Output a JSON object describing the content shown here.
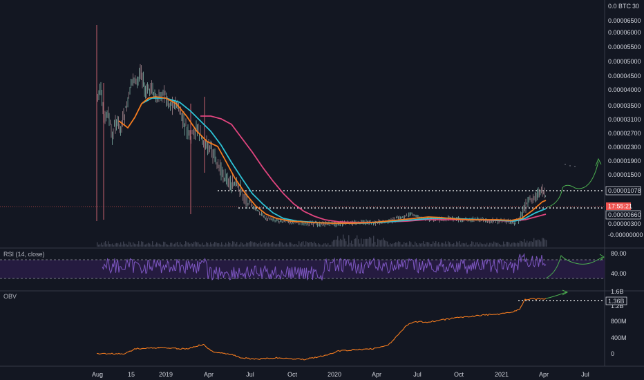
{
  "colors": {
    "background": "#131722",
    "candles": "#6f7b86",
    "ema_fast": "#f57c1f",
    "ema_mid": "#2dc3d6",
    "ema_slow": "#e2457f",
    "rsi_line": "#7e57c2",
    "rsi_band": "#2a1d49",
    "obv_line": "#f57c1f",
    "annotation_arrow": "#4caf50",
    "price_badge": "#f05350",
    "pane_border": "#363a45"
  },
  "price_axis": {
    "currency_label": "0.0 BTC",
    "header_suffix": "30",
    "ticks": [
      "0.00006500",
      "0.00006000",
      "0.00005500",
      "0.00005000",
      "0.00004500",
      "0.00004000",
      "0.00003500",
      "0.00003100",
      "0.00002700",
      "0.00002300",
      "0.00001900",
      "0.00001500",
      "0.00000300",
      "-0.00000000"
    ],
    "level_high": "0.00001078",
    "countdown": "17:55:21",
    "level_low": "0.00000660"
  },
  "rsi_pane": {
    "title": "RSI (14, close)",
    "ticks": [
      "80.00",
      "40.00"
    ]
  },
  "obv_pane": {
    "title": "OBV",
    "ticks": [
      "1.6B",
      "1.2B",
      "800M",
      "400M",
      "0"
    ],
    "last_value": "1.36B"
  },
  "time_axis": {
    "labels": [
      "Aug",
      "15",
      "2019",
      "Apr",
      "Jul",
      "Oct",
      "2020",
      "Apr",
      "Jul",
      "Oct",
      "2021",
      "Apr",
      "Jul"
    ]
  },
  "chart_data": {
    "type": "line",
    "x": [
      "2018-08",
      "2018-10",
      "2019-01",
      "2019-04",
      "2019-07",
      "2019-10",
      "2020-01",
      "2020-04",
      "2020-07",
      "2020-10",
      "2021-01",
      "2021-04"
    ],
    "series": [
      {
        "values": [
          5.5e-05,
          3.5e-05,
          4e-05,
          3e-05,
          1e-05,
          4e-06,
          4e-06,
          4e-06,
          6e-06,
          5e-06,
          5e-06,
          9e-06
        ]
      }
    ],
    "ylim": [
      0,
      6.5e-05
    ]
  }
}
